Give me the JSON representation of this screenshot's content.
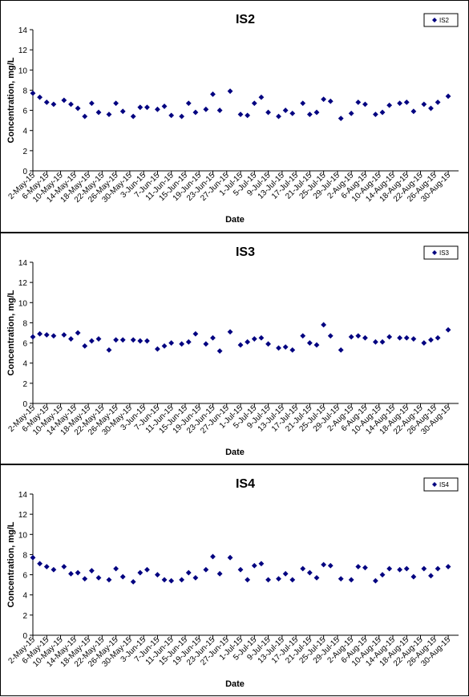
{
  "chart_data": [
    {
      "type": "scatter",
      "title": "IS2",
      "xlabel": "Date",
      "ylabel": "Concentration, mg/L",
      "ylim": [
        0,
        14
      ],
      "yticks": [
        "0",
        "2",
        "4",
        "6",
        "8",
        "10",
        "12",
        "14"
      ],
      "x_range": [
        "2-May-15",
        "2-Sep-15"
      ],
      "xtick_labels": [
        "2-May-15",
        "6-May-15",
        "10-May-15",
        "14-May-15",
        "18-May-15",
        "22-May-15",
        "26-May-15",
        "30-May-15",
        "3-Jun-15",
        "7-Jun-15",
        "11-Jun-15",
        "15-Jun-15",
        "19-Jun-15",
        "23-Jun-15",
        "27-Jun-15",
        "1-Jul-15",
        "5-Jul-15",
        "9-Jul-15",
        "13-Jul-15",
        "17-Jul-15",
        "21-Jul-15",
        "25-Jul-15",
        "29-Jul-15",
        "2-Aug-15",
        "6-Aug-15",
        "10-Aug-15",
        "14-Aug-15",
        "18-Aug-15",
        "22-Aug-15",
        "26-Aug-15",
        "30-Aug-15"
      ],
      "grid": false,
      "legend_position": "top-right",
      "marker_color": "#000080",
      "series": [
        {
          "name": "IS2",
          "x": [
            "2-May-15",
            "4-May-15",
            "6-May-15",
            "8-May-15",
            "11-May-15",
            "13-May-15",
            "15-May-15",
            "17-May-15",
            "19-May-15",
            "21-May-15",
            "24-May-15",
            "26-May-15",
            "28-May-15",
            "31-May-15",
            "2-Jun-15",
            "4-Jun-15",
            "7-Jun-15",
            "9-Jun-15",
            "11-Jun-15",
            "14-Jun-15",
            "16-Jun-15",
            "18-Jun-15",
            "21-Jun-15",
            "23-Jun-15",
            "25-Jun-15",
            "28-Jun-15",
            "1-Jul-15",
            "3-Jul-15",
            "5-Jul-15",
            "7-Jul-15",
            "9-Jul-15",
            "12-Jul-15",
            "14-Jul-15",
            "16-Jul-15",
            "19-Jul-15",
            "21-Jul-15",
            "23-Jul-15",
            "25-Jul-15",
            "27-Jul-15",
            "30-Jul-15",
            "2-Aug-15",
            "4-Aug-15",
            "6-Aug-15",
            "9-Aug-15",
            "11-Aug-15",
            "13-Aug-15",
            "16-Aug-15",
            "18-Aug-15",
            "20-Aug-15",
            "23-Aug-15",
            "25-Aug-15",
            "27-Aug-15",
            "30-Aug-15"
          ],
          "y": [
            7.7,
            7.3,
            6.8,
            6.6,
            7.0,
            6.6,
            6.2,
            5.4,
            6.7,
            5.8,
            5.6,
            6.7,
            5.9,
            5.4,
            6.3,
            6.3,
            6.1,
            6.4,
            5.5,
            5.4,
            6.7,
            5.8,
            6.1,
            7.6,
            6.0,
            7.9,
            5.6,
            5.5,
            6.7,
            7.3,
            5.8,
            5.4,
            6.0,
            5.7,
            6.7,
            5.6,
            5.8,
            7.1,
            6.9,
            5.2,
            5.7,
            6.8,
            6.6,
            5.6,
            5.8,
            6.5,
            6.7,
            6.8,
            5.9,
            6.6,
            6.2,
            6.8,
            7.4
          ]
        }
      ]
    },
    {
      "type": "scatter",
      "title": "IS3",
      "xlabel": "Date",
      "ylabel": "Concentration, mg/L",
      "ylim": [
        0,
        14
      ],
      "yticks": [
        "0",
        "2",
        "4",
        "6",
        "8",
        "10",
        "12",
        "14"
      ],
      "x_range": [
        "2-May-15",
        "2-Sep-15"
      ],
      "xtick_labels": [
        "2-May-15",
        "6-May-15",
        "10-May-15",
        "14-May-15",
        "18-May-15",
        "22-May-15",
        "26-May-15",
        "30-May-15",
        "3-Jun-15",
        "7-Jun-15",
        "11-Jun-15",
        "15-Jun-15",
        "19-Jun-15",
        "23-Jun-15",
        "27-Jun-15",
        "1-Jul-15",
        "5-Jul-15",
        "9-Jul-15",
        "13-Jul-15",
        "17-Jul-15",
        "21-Jul-15",
        "25-Jul-15",
        "29-Jul-15",
        "2-Aug-15",
        "6-Aug-15",
        "10-Aug-15",
        "14-Aug-15",
        "18-Aug-15",
        "22-Aug-15",
        "26-Aug-15",
        "30-Aug-15"
      ],
      "grid": false,
      "legend_position": "top-right",
      "marker_color": "#000080",
      "series": [
        {
          "name": "IS3",
          "x": [
            "2-May-15",
            "4-May-15",
            "6-May-15",
            "8-May-15",
            "11-May-15",
            "13-May-15",
            "15-May-15",
            "17-May-15",
            "19-May-15",
            "21-May-15",
            "24-May-15",
            "26-May-15",
            "28-May-15",
            "31-May-15",
            "2-Jun-15",
            "4-Jun-15",
            "7-Jun-15",
            "9-Jun-15",
            "11-Jun-15",
            "14-Jun-15",
            "16-Jun-15",
            "18-Jun-15",
            "21-Jun-15",
            "23-Jun-15",
            "25-Jun-15",
            "28-Jun-15",
            "1-Jul-15",
            "3-Jul-15",
            "5-Jul-15",
            "7-Jul-15",
            "9-Jul-15",
            "12-Jul-15",
            "14-Jul-15",
            "16-Jul-15",
            "19-Jul-15",
            "21-Jul-15",
            "23-Jul-15",
            "25-Jul-15",
            "27-Jul-15",
            "30-Jul-15",
            "2-Aug-15",
            "4-Aug-15",
            "6-Aug-15",
            "9-Aug-15",
            "11-Aug-15",
            "13-Aug-15",
            "16-Aug-15",
            "18-Aug-15",
            "20-Aug-15",
            "23-Aug-15",
            "25-Aug-15",
            "27-Aug-15",
            "30-Aug-15"
          ],
          "y": [
            6.6,
            6.9,
            6.8,
            6.7,
            6.8,
            6.4,
            7.0,
            5.7,
            6.2,
            6.4,
            5.3,
            6.3,
            6.3,
            6.3,
            6.2,
            6.2,
            5.4,
            5.7,
            6.0,
            5.9,
            6.1,
            6.9,
            5.9,
            6.5,
            5.2,
            7.1,
            5.8,
            6.1,
            6.4,
            6.5,
            5.9,
            5.5,
            5.6,
            5.3,
            6.7,
            6.0,
            5.8,
            7.8,
            6.7,
            5.3,
            6.6,
            6.7,
            6.5,
            6.1,
            6.1,
            6.6,
            6.5,
            6.5,
            6.4,
            6.0,
            6.3,
            6.5,
            7.3
          ]
        }
      ]
    },
    {
      "type": "scatter",
      "title": "IS4",
      "xlabel": "Date",
      "ylabel": "Concentration, mg/L",
      "ylim": [
        0,
        14
      ],
      "yticks": [
        "0",
        "2",
        "4",
        "6",
        "8",
        "10",
        "12",
        "14"
      ],
      "x_range": [
        "2-May-15",
        "2-Sep-15"
      ],
      "xtick_labels": [
        "2-May-15",
        "6-May-15",
        "10-May-15",
        "14-May-15",
        "18-May-15",
        "22-May-15",
        "26-May-15",
        "30-May-15",
        "3-Jun-15",
        "7-Jun-15",
        "11-Jun-15",
        "15-Jun-15",
        "19-Jun-15",
        "23-Jun-15",
        "27-Jun-15",
        "1-Jul-15",
        "5-Jul-15",
        "9-Jul-15",
        "13-Jul-15",
        "17-Jul-15",
        "21-Jul-15",
        "25-Jul-15",
        "29-Jul-15",
        "2-Aug-15",
        "6-Aug-15",
        "10-Aug-15",
        "14-Aug-15",
        "18-Aug-15",
        "22-Aug-15",
        "26-Aug-15",
        "30-Aug-15"
      ],
      "grid": false,
      "legend_position": "top-right",
      "marker_color": "#000080",
      "series": [
        {
          "name": "IS4",
          "x": [
            "2-May-15",
            "4-May-15",
            "6-May-15",
            "8-May-15",
            "11-May-15",
            "13-May-15",
            "15-May-15",
            "17-May-15",
            "19-May-15",
            "21-May-15",
            "24-May-15",
            "26-May-15",
            "28-May-15",
            "31-May-15",
            "2-Jun-15",
            "4-Jun-15",
            "7-Jun-15",
            "9-Jun-15",
            "11-Jun-15",
            "14-Jun-15",
            "16-Jun-15",
            "18-Jun-15",
            "21-Jun-15",
            "23-Jun-15",
            "25-Jun-15",
            "28-Jun-15",
            "1-Jul-15",
            "3-Jul-15",
            "5-Jul-15",
            "7-Jul-15",
            "9-Jul-15",
            "12-Jul-15",
            "14-Jul-15",
            "16-Jul-15",
            "19-Jul-15",
            "21-Jul-15",
            "23-Jul-15",
            "25-Jul-15",
            "27-Jul-15",
            "30-Jul-15",
            "2-Aug-15",
            "4-Aug-15",
            "6-Aug-15",
            "9-Aug-15",
            "11-Aug-15",
            "13-Aug-15",
            "16-Aug-15",
            "18-Aug-15",
            "20-Aug-15",
            "23-Aug-15",
            "25-Aug-15",
            "27-Aug-15",
            "30-Aug-15"
          ],
          "y": [
            7.7,
            7.1,
            6.8,
            6.5,
            6.8,
            6.1,
            6.2,
            5.6,
            6.4,
            5.7,
            5.5,
            6.6,
            5.8,
            5.3,
            6.2,
            6.5,
            6.0,
            5.5,
            5.4,
            5.5,
            6.2,
            5.7,
            6.5,
            7.8,
            6.1,
            7.7,
            6.5,
            5.5,
            6.9,
            7.1,
            5.5,
            5.6,
            6.1,
            5.5,
            6.6,
            6.2,
            5.7,
            7.0,
            6.9,
            5.6,
            5.5,
            6.8,
            6.7,
            5.4,
            6.0,
            6.6,
            6.5,
            6.6,
            5.8,
            6.6,
            5.9,
            6.6,
            6.8
          ]
        }
      ]
    }
  ]
}
